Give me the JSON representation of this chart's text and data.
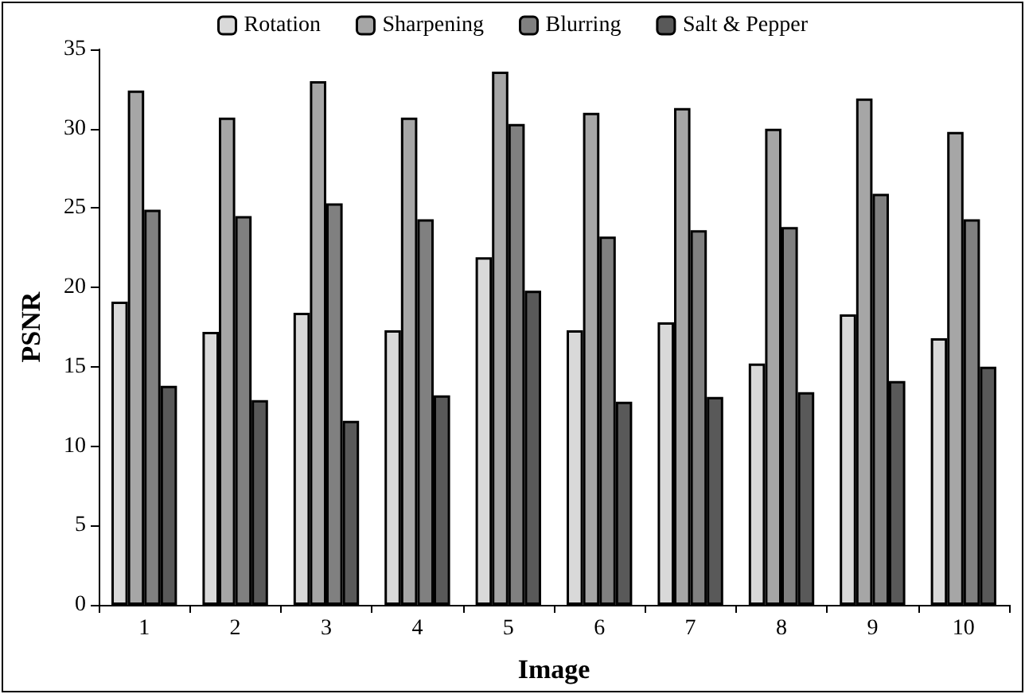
{
  "chart_data": {
    "type": "bar",
    "xlabel": "Image",
    "ylabel": "PSNR",
    "categories": [
      "1",
      "2",
      "3",
      "4",
      "5",
      "6",
      "7",
      "8",
      "9",
      "10"
    ],
    "series": [
      {
        "name": "Rotation",
        "color": "#d9d9d9",
        "values": [
          19.1,
          17.2,
          18.4,
          17.3,
          21.9,
          17.3,
          17.8,
          15.2,
          18.3,
          16.8
        ]
      },
      {
        "name": "Sharpening",
        "color": "#a6a6a6",
        "values": [
          32.4,
          30.7,
          33.0,
          30.7,
          33.6,
          31.0,
          31.3,
          30.0,
          31.9,
          29.8
        ]
      },
      {
        "name": "Blurring",
        "color": "#808080",
        "values": [
          24.9,
          24.5,
          25.3,
          24.3,
          30.3,
          23.2,
          23.6,
          23.8,
          25.9,
          24.3
        ]
      },
      {
        "name": "Salt & Pepper",
        "color": "#595959",
        "values": [
          13.8,
          12.9,
          11.6,
          13.2,
          19.8,
          12.8,
          13.1,
          13.4,
          14.1,
          15.0
        ]
      }
    ],
    "ylim": [
      0,
      35
    ],
    "yticks": [
      0,
      5,
      10,
      15,
      20,
      25,
      30,
      35
    ],
    "grid": false,
    "legend": "top"
  }
}
